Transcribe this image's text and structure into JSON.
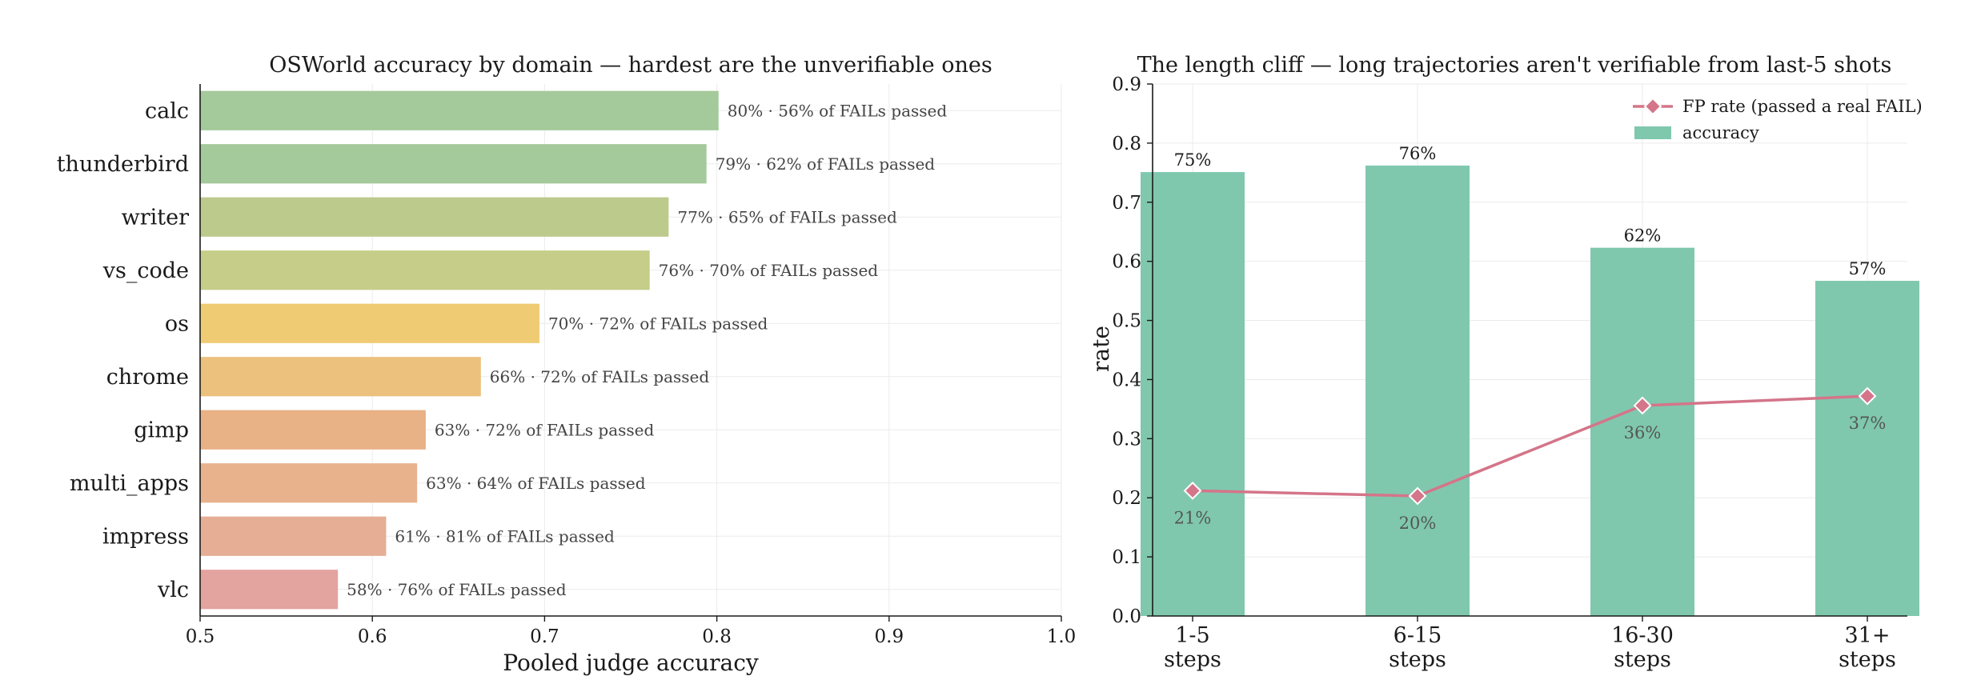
{
  "chart_data": [
    {
      "type": "bar",
      "orientation": "horizontal",
      "title": "OSWorld accuracy by domain — hardest are the unverifiable ones",
      "xlabel": "Pooled judge accuracy",
      "ylabel": "",
      "xlim": [
        0.5,
        1.0
      ],
      "xticks": [
        "0.5",
        "0.6",
        "0.7",
        "0.8",
        "0.9",
        "1.0"
      ],
      "grid": true,
      "categories": [
        "calc",
        "thunderbird",
        "writer",
        "vs_code",
        "os",
        "chrome",
        "gimp",
        "multi_apps",
        "impress",
        "vlc"
      ],
      "values": [
        0.801,
        0.794,
        0.772,
        0.761,
        0.697,
        0.663,
        0.631,
        0.626,
        0.608,
        0.58
      ],
      "annotations": [
        "80% · 56% of FAILs passed",
        "79% · 62% of FAILs passed",
        "77% · 65% of FAILs passed",
        "76% · 70% of FAILs passed",
        "70% · 72% of FAILs passed",
        "66% · 72% of FAILs passed",
        "63% · 72% of FAILs passed",
        "63% · 64% of FAILs passed",
        "61% · 81% of FAILs passed",
        "58% · 76% of FAILs passed"
      ],
      "colors": [
        "#a4c99b",
        "#a4c99b",
        "#bcca8c",
        "#c5cd88",
        "#efcb73",
        "#ecc07d",
        "#e8b186",
        "#e8b28c",
        "#e5ae95",
        "#e3a39e"
      ]
    },
    {
      "type": "bar",
      "title": "The length cliff — long trajectories aren't verifiable from last-5 shots",
      "xlabel": "",
      "ylabel": "rate",
      "ylim": [
        0,
        0.9
      ],
      "yticks": [
        "0.0",
        "0.1",
        "0.2",
        "0.3",
        "0.4",
        "0.5",
        "0.6",
        "0.7",
        "0.8",
        "0.9"
      ],
      "grid": true,
      "legend_position": "top-right",
      "categories": [
        [
          "1-5",
          "steps"
        ],
        [
          "6-15",
          "steps"
        ],
        [
          "16-30",
          "steps"
        ],
        [
          "31+",
          "steps"
        ]
      ],
      "series": [
        {
          "name": "accuracy",
          "type": "bar",
          "color": "#7fc8ae",
          "values": [
            0.751,
            0.762,
            0.623,
            0.567
          ],
          "labels": [
            "75%",
            "76%",
            "62%",
            "57%"
          ]
        },
        {
          "name": "FP rate (passed a real FAIL)",
          "type": "line",
          "color": "#d47589",
          "values": [
            0.212,
            0.203,
            0.356,
            0.372
          ],
          "labels": [
            "21%",
            "20%",
            "36%",
            "37%"
          ]
        }
      ]
    }
  ]
}
